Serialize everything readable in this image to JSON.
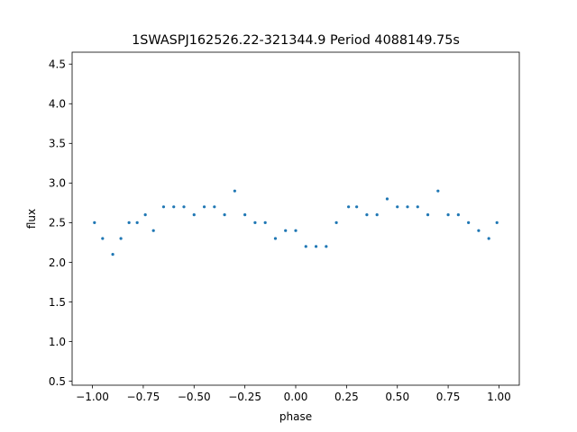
{
  "chart_data": {
    "type": "scatter",
    "title": "1SWASPJ162526.22-321344.9 Period 4088149.75s",
    "xlabel": "phase",
    "ylabel": "flux",
    "xlim": [
      -1.1,
      1.1
    ],
    "ylim": [
      0.45,
      4.65
    ],
    "xticks": [
      -1.0,
      -0.75,
      -0.5,
      -0.25,
      0.0,
      0.25,
      0.5,
      0.75,
      1.0
    ],
    "xtick_labels": [
      "−1.00",
      "−0.75",
      "−0.50",
      "−0.25",
      "0.00",
      "0.25",
      "0.50",
      "0.75",
      "1.00"
    ],
    "yticks": [
      0.5,
      1.0,
      1.5,
      2.0,
      2.5,
      3.0,
      3.5,
      4.0,
      4.5
    ],
    "ytick_labels": [
      "0.5",
      "1.0",
      "1.5",
      "2.0",
      "2.5",
      "3.0",
      "3.5",
      "4.0",
      "4.5"
    ],
    "grid": false,
    "legend": "none",
    "marker_color": "#1f77b4",
    "series": [
      {
        "x": [
          -0.99,
          -0.95,
          -0.9,
          -0.86,
          -0.82,
          -0.78,
          -0.74,
          -0.7,
          -0.65,
          -0.6,
          -0.55,
          -0.5,
          -0.45,
          -0.4,
          -0.35,
          -0.3,
          -0.25,
          -0.2,
          -0.15,
          -0.1,
          -0.05,
          0.0,
          0.05,
          0.1,
          0.15,
          0.2,
          0.26,
          0.3,
          0.35,
          0.4,
          0.45,
          0.5,
          0.55,
          0.6,
          0.65,
          0.7,
          0.75,
          0.8,
          0.85,
          0.9,
          0.95,
          0.99
        ],
        "y": [
          2.5,
          2.3,
          2.1,
          2.3,
          2.5,
          2.5,
          2.6,
          2.4,
          2.7,
          2.7,
          2.7,
          2.6,
          2.7,
          2.7,
          2.6,
          2.9,
          2.6,
          2.5,
          2.5,
          2.3,
          2.4,
          2.4,
          2.2,
          2.2,
          2.2,
          2.5,
          2.7,
          2.7,
          2.6,
          2.6,
          2.8,
          2.7,
          2.7,
          2.7,
          2.6,
          2.9,
          2.6,
          2.6,
          2.5,
          2.4,
          2.3,
          2.5
        ]
      }
    ]
  }
}
